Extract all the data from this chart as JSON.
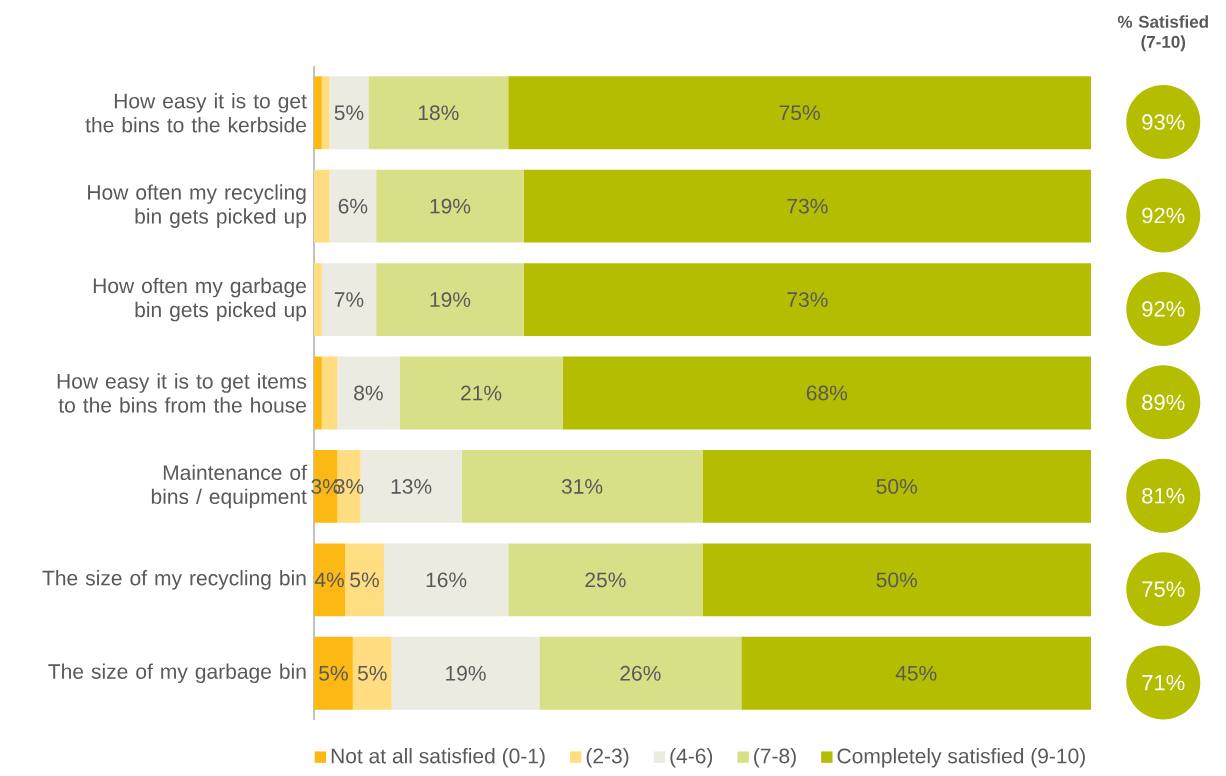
{
  "chart_data": {
    "type": "bar",
    "orientation": "horizontal",
    "stacked": true,
    "categories": [
      "How easy it is to get the bins to the kerbside",
      "How often my recycling bin gets picked up",
      "How often my garbage bin gets picked up",
      "How easy it is to get items to the bins from the house",
      "Maintenance of bins / equipment",
      "The size of my recycling bin",
      "The size of my garbage bin"
    ],
    "series": [
      {
        "name": "Not at all satisfied (0-1)",
        "color": "#fdb913",
        "values": [
          1,
          0,
          0,
          1,
          3,
          4,
          5
        ],
        "value_labels": [
          null,
          null,
          null,
          null,
          "3%",
          "4%",
          "5%"
        ]
      },
      {
        "name": "(2-3)",
        "color": "#ffdd80",
        "values": [
          1,
          2,
          1,
          2,
          3,
          5,
          5
        ],
        "value_labels": [
          null,
          null,
          null,
          null,
          "3%",
          "5%",
          "5%"
        ]
      },
      {
        "name": "(4-6)",
        "color": "#ecebe1",
        "values": [
          5,
          6,
          7,
          8,
          13,
          16,
          19
        ],
        "value_labels": [
          "5%",
          "6%",
          "7%",
          "8%",
          "13%",
          "16%",
          "19%"
        ]
      },
      {
        "name": "(7-8)",
        "color": "#d7df87",
        "values": [
          18,
          19,
          19,
          21,
          31,
          25,
          26
        ],
        "value_labels": [
          "18%",
          "19%",
          "19%",
          "21%",
          "31%",
          "25%",
          "26%"
        ]
      },
      {
        "name": "Completely satisfied (9-10)",
        "color": "#b5bd00",
        "values": [
          75,
          73,
          73,
          68,
          50,
          50,
          45
        ],
        "value_labels": [
          "75%",
          "73%",
          "73%",
          "68%",
          "50%",
          "50%",
          "45%"
        ]
      }
    ],
    "xlim": [
      0,
      100
    ],
    "tick_labels": "y",
    "legend": "bottom",
    "grid": false,
    "annotations": [
      "% Satisfied (7-10)",
      "93%",
      "92%",
      "92%",
      "89%",
      "81%",
      "75%",
      "71%"
    ]
  }
}
